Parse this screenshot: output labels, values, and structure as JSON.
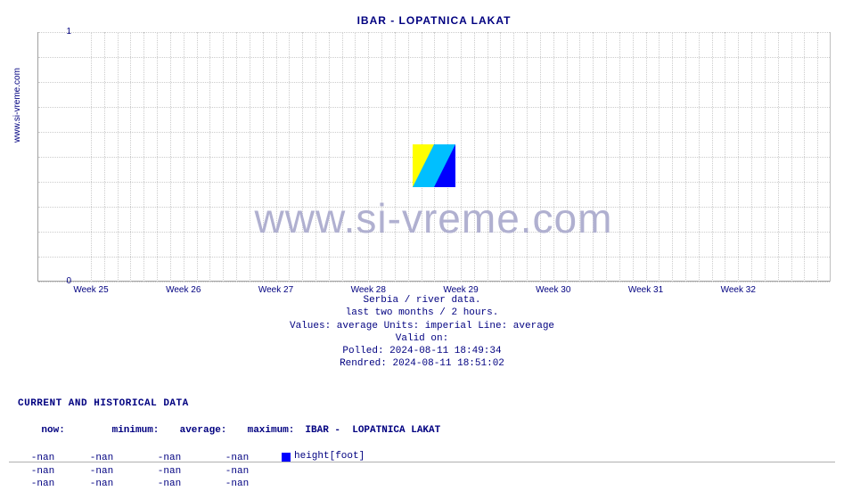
{
  "chart": {
    "type": "line",
    "title": "IBAR -  LOPATNICA LAKAT",
    "title_color": "#000080",
    "title_fontsize": 12,
    "background_color": "#ffffff",
    "grid_color": "#cccccc",
    "axis_color": "#a0a0a0",
    "text_color": "#000080",
    "ylim": [
      0,
      1
    ],
    "yticks": [
      0,
      1
    ],
    "xticks": [
      "Week 25",
      "Week 26",
      "Week 27",
      "Week 28",
      "Week 29",
      "Week 30",
      "Week 31",
      "Week 32"
    ],
    "hgrid_count": 10,
    "vgrid_subdivisions": 7,
    "watermark_text": "www.si-vreme.com",
    "watermark_color": "#b0b0d0",
    "watermark_fontsize": 46
  },
  "sidebar": {
    "label": "www.si-vreme.com"
  },
  "meta": {
    "line1": "Serbia / river data.",
    "line2": "last two months / 2 hours.",
    "line3": "Values: average  Units: imperial  Line: average",
    "line4": "Valid on:",
    "line5": "Polled: 2024-08-11 18:49:34",
    "line6": "Rendred: 2024-08-11 18:51:02"
  },
  "data_table": {
    "heading": "CURRENT AND HISTORICAL DATA",
    "columns": [
      "now:",
      "minimum:",
      "average:",
      "maximum:"
    ],
    "series": {
      "label": "IBAR -  LOPATNICA LAKAT",
      "swatch_color": "#0000ff",
      "unit": "height[foot]"
    },
    "rows": [
      [
        "-nan",
        "-nan",
        "-nan",
        "-nan"
      ],
      [
        "-nan",
        "-nan",
        "-nan",
        "-nan"
      ],
      [
        "-nan",
        "-nan",
        "-nan",
        "-nan"
      ]
    ]
  }
}
